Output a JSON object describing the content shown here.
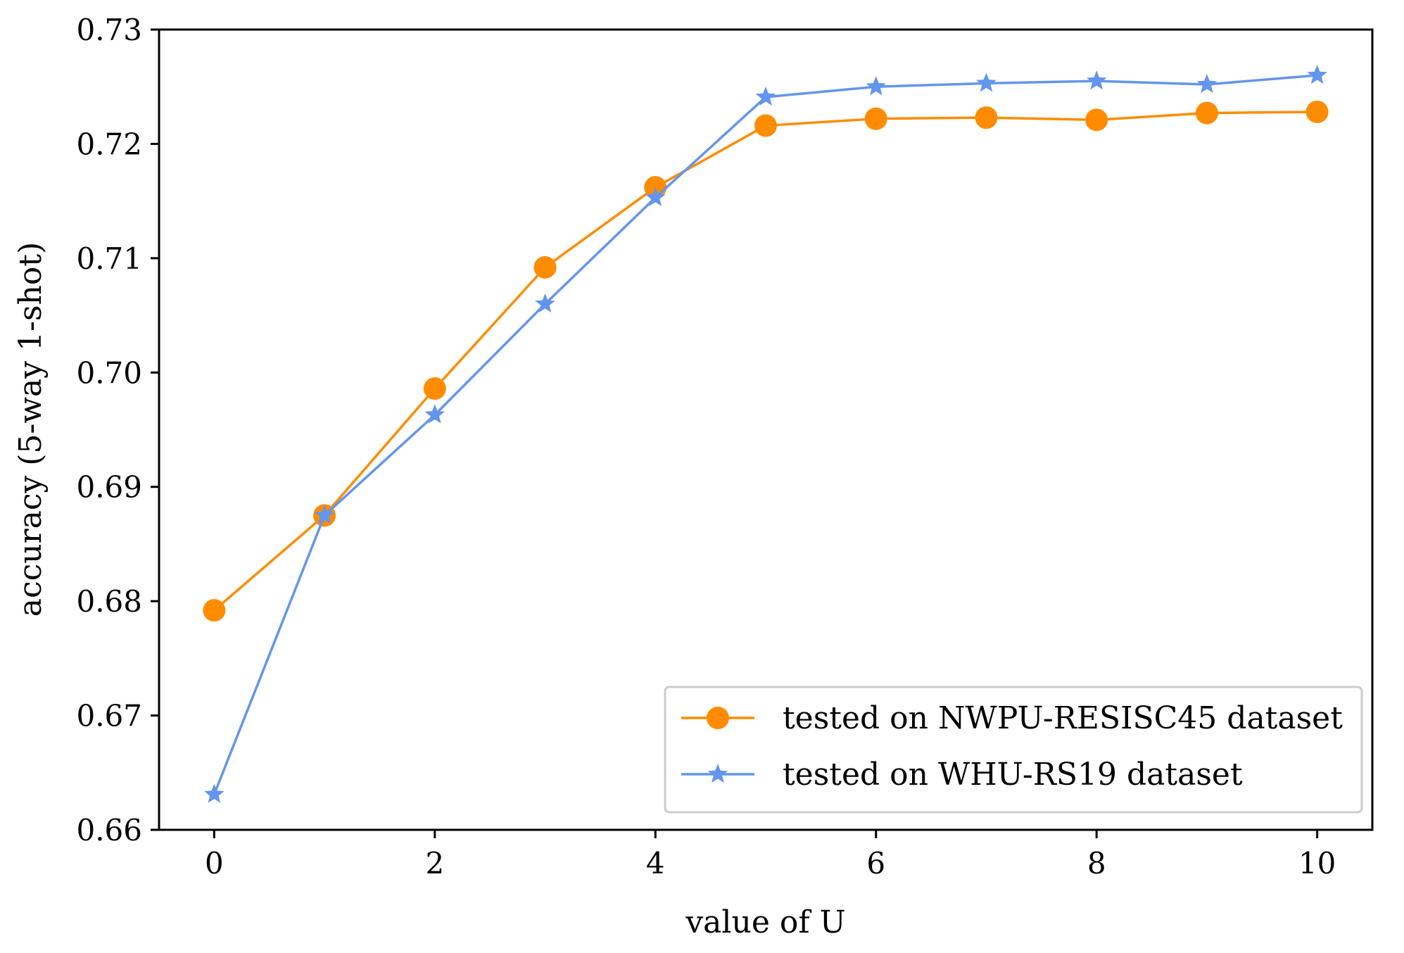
{
  "chart_data": {
    "type": "line",
    "title": "",
    "xlabel": "value of U",
    "ylabel": "accuracy (5-way 1-shot)",
    "xlim": [
      -0.5,
      10.5
    ],
    "ylim": [
      0.66,
      0.73
    ],
    "xticks": [
      0,
      2,
      4,
      6,
      8,
      10
    ],
    "xtick_labels": [
      "0",
      "2",
      "4",
      "6",
      "8",
      "10"
    ],
    "yticks": [
      0.66,
      0.67,
      0.68,
      0.69,
      0.7,
      0.71,
      0.72,
      0.73
    ],
    "ytick_labels": [
      "0.66",
      "0.67",
      "0.68",
      "0.69",
      "0.70",
      "0.71",
      "0.72",
      "0.73"
    ],
    "grid": false,
    "legend_position": "bottom-right",
    "x": [
      0,
      1,
      2,
      3,
      4,
      5,
      6,
      7,
      8,
      9,
      10
    ],
    "series": [
      {
        "name": "tested on NWPU-RESISC45 dataset",
        "marker": "circle",
        "color": "#ff8c00",
        "values": [
          0.6792,
          0.6875,
          0.6986,
          0.7092,
          0.7162,
          0.7216,
          0.7222,
          0.7223,
          0.7221,
          0.7227,
          0.7228
        ]
      },
      {
        "name": "tested on WHU-RS19 dataset",
        "marker": "star",
        "color": "#6495ed",
        "values": [
          0.6631,
          0.6875,
          0.6963,
          0.706,
          0.7153,
          0.7241,
          0.725,
          0.7253,
          0.7255,
          0.7252,
          0.726
        ]
      }
    ]
  }
}
